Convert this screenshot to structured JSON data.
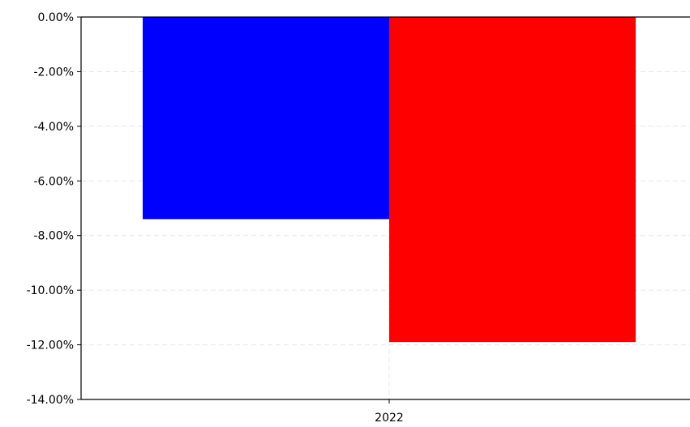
{
  "chart_data": {
    "type": "bar",
    "categories": [
      "2022"
    ],
    "series": [
      {
        "values": [
          -7.4
        ],
        "color": "#0000ff"
      },
      {
        "values": [
          -11.9
        ],
        "color": "#ff0000"
      }
    ],
    "ylim": [
      -14,
      0
    ],
    "y_ticks": [
      "0.00%",
      "-2.00%",
      "-4.00%",
      "-6.00%",
      "-8.00%",
      "-10.00%",
      "-12.00%",
      "-14.00%"
    ],
    "x_ticks": [
      "2022"
    ],
    "grid": true,
    "legend": "none",
    "title": "",
    "xlabel": "",
    "ylabel": ""
  }
}
